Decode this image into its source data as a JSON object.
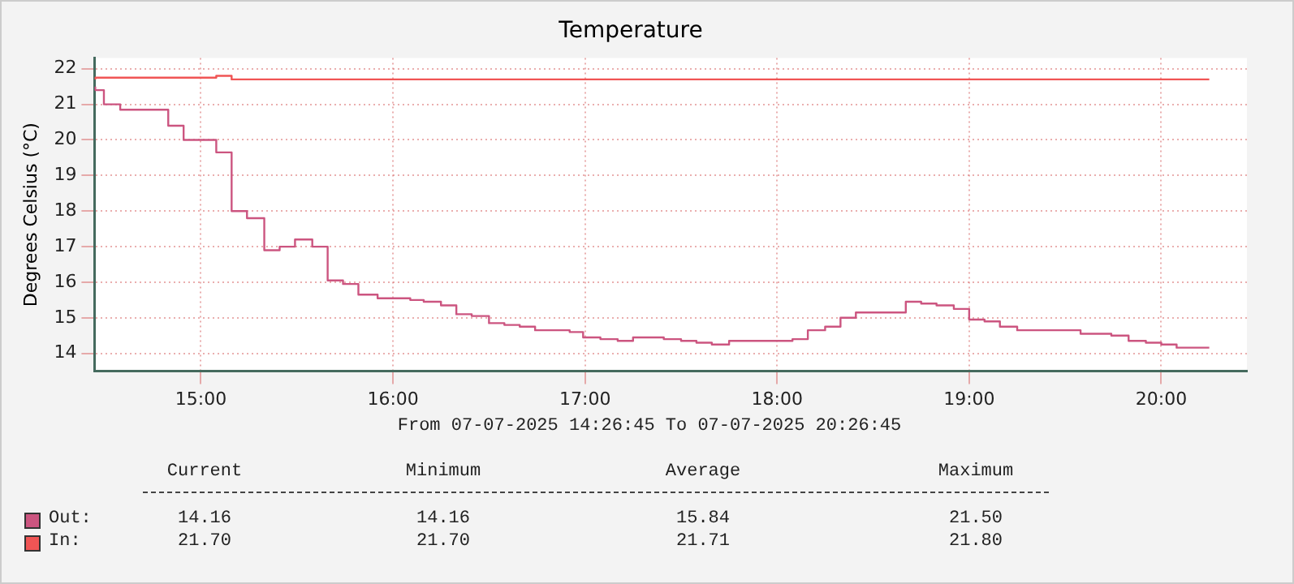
{
  "chart_data": {
    "type": "step",
    "title": "Temperature",
    "ylabel": "Degrees Celsius (°C)",
    "xlim": [
      14.446,
      20.446
    ],
    "xticks": [
      {
        "value": 15,
        "label": "15:00"
      },
      {
        "value": 16,
        "label": "16:00"
      },
      {
        "value": 17,
        "label": "17:00"
      },
      {
        "value": 18,
        "label": "18:00"
      },
      {
        "value": 19,
        "label": "19:00"
      },
      {
        "value": 20,
        "label": "20:00"
      }
    ],
    "ylim": [
      13.5,
      22.3
    ],
    "yticks": [
      14,
      15,
      16,
      17,
      18,
      19,
      20,
      21,
      22
    ],
    "grid": true,
    "legend": "bottom",
    "marker": "none",
    "line_style": "solid",
    "series": [
      {
        "name": "Out:",
        "color": "#cc5580",
        "x": [
          14.45,
          14.495,
          14.58,
          14.83,
          14.91,
          15.08,
          15.16,
          15.24,
          15.33,
          15.41,
          15.49,
          15.58,
          15.66,
          15.74,
          15.82,
          15.92,
          16.09,
          16.16,
          16.25,
          16.33,
          16.41,
          16.5,
          16.58,
          16.66,
          16.74,
          16.92,
          16.99,
          17.08,
          17.17,
          17.25,
          17.41,
          17.5,
          17.58,
          17.66,
          17.75,
          18.08,
          18.16,
          18.25,
          18.33,
          18.41,
          18.67,
          18.75,
          18.83,
          18.92,
          19.0,
          19.08,
          19.16,
          19.25,
          19.58,
          19.74,
          19.83,
          19.92,
          20.0,
          20.08,
          20.17,
          20.25
        ],
        "values": [
          21.5,
          21.4,
          21.0,
          20.85,
          20.4,
          20.0,
          19.65,
          18.0,
          17.8,
          16.9,
          17.0,
          17.2,
          17.0,
          16.05,
          15.95,
          15.65,
          15.55,
          15.5,
          15.45,
          15.35,
          15.1,
          15.05,
          14.85,
          14.8,
          14.75,
          14.65,
          14.6,
          14.45,
          14.4,
          14.35,
          14.45,
          14.4,
          14.35,
          14.3,
          14.25,
          14.35,
          14.4,
          14.65,
          14.75,
          15.0,
          15.15,
          15.45,
          15.4,
          15.35,
          15.25,
          14.95,
          14.9,
          14.75,
          14.65,
          14.55,
          14.5,
          14.35,
          14.3,
          14.25,
          14.16,
          14.16
        ]
      },
      {
        "name": "In:",
        "color": "#f05555",
        "x": [
          14.45,
          15.08,
          15.16,
          15.49,
          20.25
        ],
        "values": [
          21.7,
          21.75,
          21.8,
          21.7,
          21.7
        ]
      }
    ],
    "annotations": [
      "From 07-07-2025 14:26:45 To 07-07-2025 20:26:45",
      "Current",
      "Minimum",
      "Average",
      "Maximum",
      "14.16",
      "14.16",
      "15.84",
      "21.50",
      "21.70",
      "21.70",
      "21.71",
      "21.80"
    ]
  }
}
